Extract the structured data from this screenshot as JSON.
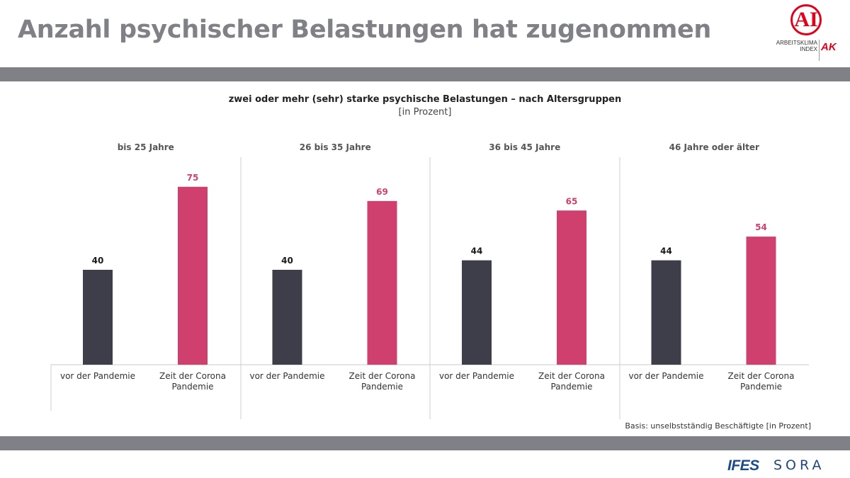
{
  "header": {
    "title": "Anzahl psychischer Belastungen hat zugenommen",
    "logo": {
      "mark": "AI",
      "lines": [
        "ARBEITSKLIMA",
        "INDEX"
      ],
      "ak": "AK",
      "color": "#e2001a"
    }
  },
  "footer": {
    "basis": "Basis: unselbstständig Beschäftigte [in Prozent]",
    "logo_ifes": "IFES",
    "logo_sora": "SORA"
  },
  "chart_data": {
    "type": "bar",
    "title": "zwei oder mehr (sehr) starke psychische Belastungen – nach Altersgruppen",
    "subtitle": "[in Prozent]",
    "ylim": [
      0,
      100
    ],
    "grid": false,
    "groups": [
      {
        "label": "bis 25 Jahre",
        "bars": [
          {
            "category": "vor der Pandemie",
            "value": 40
          },
          {
            "category": "Zeit der Corona Pandemie",
            "value": 75
          }
        ]
      },
      {
        "label": "26 bis 35 Jahre",
        "bars": [
          {
            "category": "vor der Pandemie",
            "value": 40
          },
          {
            "category": "Zeit der Corona Pandemie",
            "value": 69
          }
        ]
      },
      {
        "label": "36 bis 45 Jahre",
        "bars": [
          {
            "category": "vor der Pandemie",
            "value": 44
          },
          {
            "category": "Zeit der Corona Pandemie",
            "value": 65
          }
        ]
      },
      {
        "label": "46 Jahre oder älter",
        "bars": [
          {
            "category": "vor der Pandemie",
            "value": 44
          },
          {
            "category": "Zeit der Corona Pandemie",
            "value": 54
          }
        ]
      }
    ],
    "category_lines": [
      [
        "vor der Pandemie"
      ],
      [
        "Zeit der Corona",
        "Pandemie"
      ]
    ],
    "colors": {
      "bar": [
        "#3d3e4a",
        "#cf406f"
      ],
      "value_label": [
        "#1a1a1a",
        "#cf406f"
      ]
    }
  }
}
